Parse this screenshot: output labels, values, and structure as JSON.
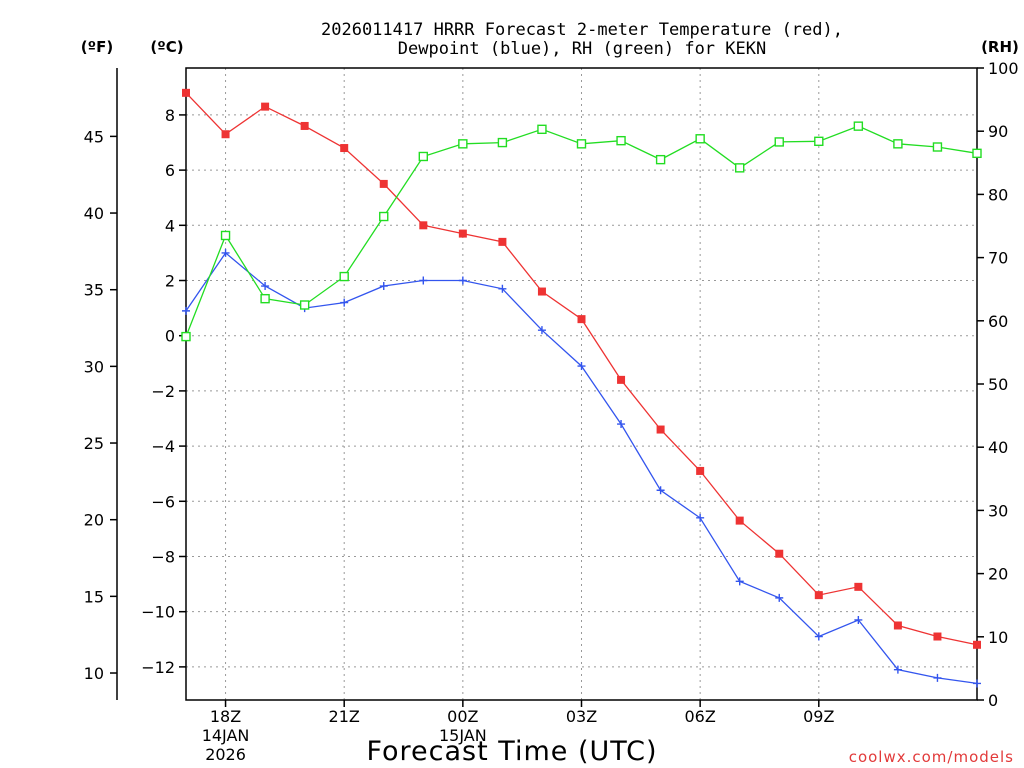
{
  "chart_data": {
    "type": "line",
    "title_line1": "2026011417 HRRR Forecast 2-meter Temperature (red),",
    "title_line2": "Dewpoint (blue), RH (green) for KEKN",
    "xlabel": "Forecast Time (UTC)",
    "credit": "coolwx.com/models",
    "unit_f": "(ºF)",
    "unit_c": "(ºC)",
    "unit_rh": "(RH)",
    "hours": [
      17,
      18,
      19,
      20,
      21,
      22,
      23,
      24,
      25,
      26,
      27,
      28,
      29,
      30,
      31,
      32,
      33,
      34,
      35,
      36,
      37
    ],
    "xlim": [
      17,
      37
    ],
    "x_ticks": [
      {
        "h": 18,
        "label": "18Z",
        "sub1": "14JAN",
        "sub2": "2026"
      },
      {
        "h": 21,
        "label": "21Z",
        "sub1": "",
        "sub2": ""
      },
      {
        "h": 24,
        "label": "00Z",
        "sub1": "15JAN",
        "sub2": ""
      },
      {
        "h": 27,
        "label": "03Z",
        "sub1": "",
        "sub2": ""
      },
      {
        "h": 30,
        "label": "06Z",
        "sub1": "",
        "sub2": ""
      },
      {
        "h": 33,
        "label": "09Z",
        "sub1": "",
        "sub2": ""
      }
    ],
    "ylim_c": [
      -13.2,
      9.7
    ],
    "c_ticks": [
      {
        "v": 8,
        "label": "8"
      },
      {
        "v": 6,
        "label": "6"
      },
      {
        "v": 4,
        "label": "4"
      },
      {
        "v": 2,
        "label": "2"
      },
      {
        "v": 0,
        "label": "0"
      },
      {
        "v": -2,
        "label": "−2"
      },
      {
        "v": -4,
        "label": "−4"
      },
      {
        "v": -6,
        "label": "−6"
      },
      {
        "v": -8,
        "label": "−8"
      },
      {
        "v": -10,
        "label": "−10"
      },
      {
        "v": -12,
        "label": "−12"
      }
    ],
    "f_ticks": [
      {
        "v": 45,
        "label": "45"
      },
      {
        "v": 40,
        "label": "40"
      },
      {
        "v": 35,
        "label": "35"
      },
      {
        "v": 30,
        "label": "30"
      },
      {
        "v": 25,
        "label": "25"
      },
      {
        "v": 20,
        "label": "20"
      },
      {
        "v": 15,
        "label": "15"
      },
      {
        "v": 10,
        "label": "10"
      }
    ],
    "ylim_rh": [
      0,
      100
    ],
    "rh_ticks": [
      {
        "v": 100,
        "label": "100"
      },
      {
        "v": 90,
        "label": "90"
      },
      {
        "v": 80,
        "label": "80"
      },
      {
        "v": 70,
        "label": "70"
      },
      {
        "v": 60,
        "label": "60"
      },
      {
        "v": 50,
        "label": "50"
      },
      {
        "v": 40,
        "label": "40"
      },
      {
        "v": 30,
        "label": "30"
      },
      {
        "v": 20,
        "label": "20"
      },
      {
        "v": 10,
        "label": "10"
      },
      {
        "v": 0,
        "label": "0"
      }
    ],
    "series": [
      {
        "name": "Temperature",
        "axis": "c",
        "color": "#ee3333",
        "marker": "filled-square",
        "values": [
          8.8,
          7.3,
          8.3,
          7.6,
          6.8,
          5.5,
          4.0,
          3.7,
          3.4,
          1.6,
          0.6,
          -1.6,
          -3.4,
          -4.9,
          -6.7,
          -7.9,
          -9.4,
          -9.1,
          -10.5,
          -10.9,
          -11.2
        ]
      },
      {
        "name": "Dewpoint",
        "axis": "c",
        "color": "#3355ee",
        "marker": "plus",
        "values": [
          0.9,
          3.0,
          1.8,
          1.0,
          1.2,
          1.8,
          2.0,
          2.0,
          1.7,
          0.2,
          -1.1,
          -3.2,
          -5.6,
          -6.6,
          -8.9,
          -9.5,
          -10.9,
          -10.3,
          -12.1,
          -12.4,
          -12.6
        ]
      },
      {
        "name": "RH",
        "axis": "rh",
        "color": "#22dd22",
        "marker": "open-square",
        "values": [
          57.5,
          73.5,
          63.5,
          62.5,
          67,
          76.5,
          86,
          88,
          88.2,
          90.3,
          88,
          88.5,
          85.5,
          88.8,
          84.2,
          88.3,
          88.4,
          90.8,
          88,
          87.5,
          86.5
        ]
      }
    ]
  }
}
